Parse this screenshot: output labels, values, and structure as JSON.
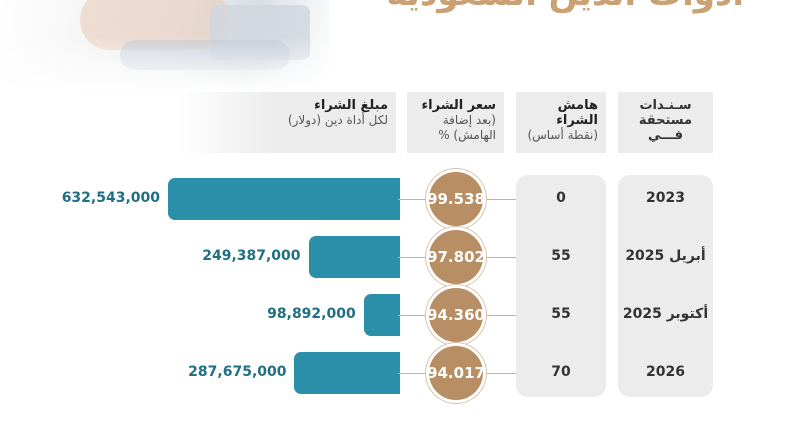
{
  "title": "أدوات الدين السعودية",
  "headers": {
    "year": "سـنـدات مستحقة فـــي",
    "margin_title": "هامش الشراء",
    "margin_sub": "(نقطة أساس)",
    "price_title": "سعر الشراء",
    "price_sub": "(بعد إضافة الهامش) %",
    "amount_title": "مبلغ الشراء",
    "amount_sub": "لكل أداة دين (دولار)"
  },
  "chart_data": {
    "type": "bar",
    "orientation": "horizontal",
    "categories": [
      "2023",
      "أبريل 2025",
      "أكتوبر 2025",
      "2026"
    ],
    "series": [
      {
        "name": "مبلغ الشراء",
        "values": [
          632543000,
          249387000,
          98892000,
          287675000
        ],
        "labels": [
          "632,543,000",
          "249,387,000",
          "98,892,000",
          "287,675,000"
        ]
      }
    ],
    "purchase_price": [
      "99.538",
      "97.802",
      "94.360",
      "94.017"
    ],
    "purchase_margin": [
      "0",
      "55",
      "55",
      "70"
    ],
    "colors": {
      "bar": "#2a8fa8",
      "circle": "#b88e64",
      "title": "#c9a173",
      "amount_text": "#1f6f85"
    }
  }
}
